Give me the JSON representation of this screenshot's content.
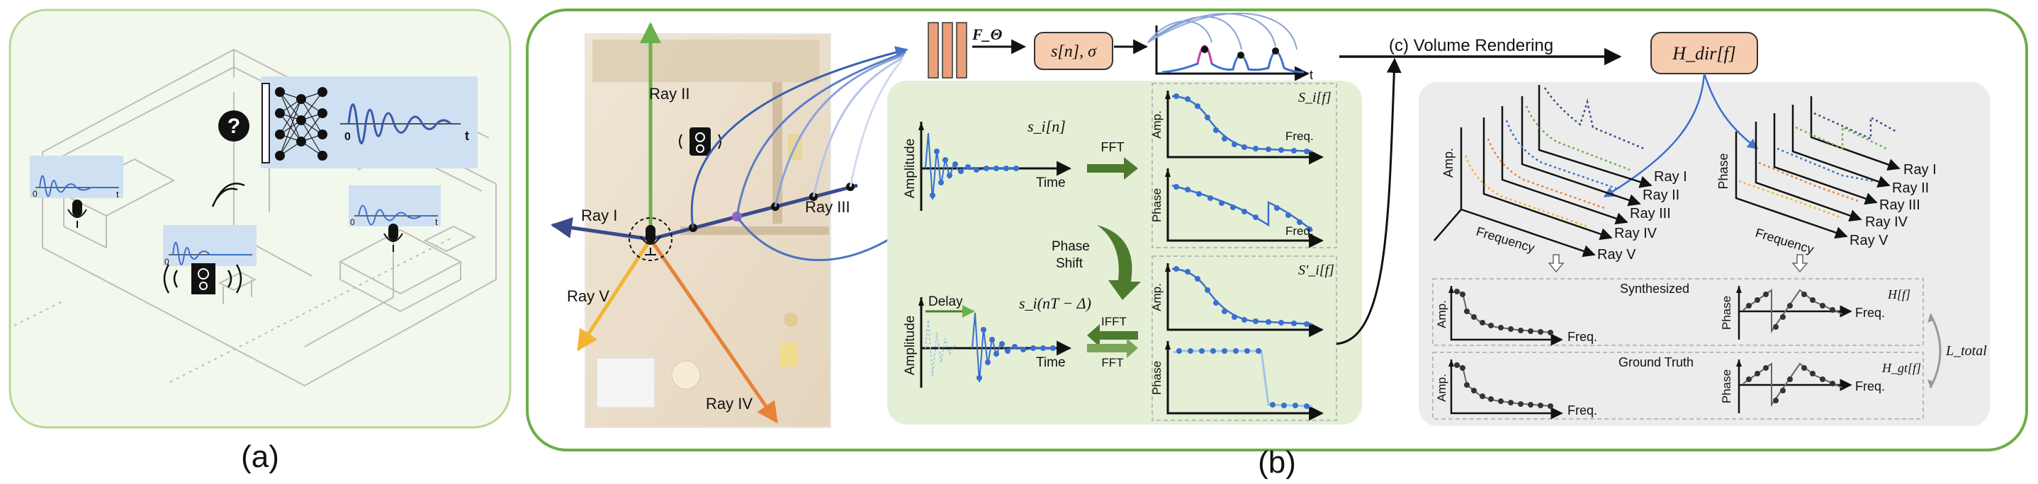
{
  "captions": {
    "a": "(a)",
    "b": "(b)"
  },
  "rays": {
    "ray1": "Ray I",
    "ray2": "Ray II",
    "ray3": "Ray III",
    "ray4": "Ray IV",
    "ray5": "Ray V"
  },
  "network": {
    "f_theta": "F_Θ",
    "output": "s[n], σ",
    "t_axis": "t"
  },
  "time_domain": {
    "amplitude": "Amplitude",
    "time": "Time",
    "signal": "s_i[n]",
    "delayed_signal": "s_i(nT − Δ)",
    "delay": "Delay"
  },
  "transforms": {
    "fft": "FFT",
    "ifft": "IFFT",
    "fft2": "FFT",
    "phase_shift_1": "Phase",
    "phase_shift_2": "Shift"
  },
  "freq_domain": {
    "amp": "Amp.",
    "phase": "Phase",
    "freq": "Freq.",
    "spectrum": "S_i[f]",
    "shifted_spectrum": "S'_i[f]"
  },
  "rendering": {
    "label": "(c) Volume Rendering",
    "h_dir": "H_dir[f]"
  },
  "right_panel": {
    "amp": "Amp.",
    "phase": "Phase",
    "frequency": "Frequency",
    "rays_left": [
      "Ray I",
      "Ray II",
      "Ray III",
      "Ray IV",
      "Ray V"
    ],
    "rays_right": [
      "Ray I",
      "Ray II",
      "Ray III",
      "Ray IV",
      "Ray V"
    ],
    "synthesized": "Synthesized",
    "h_f": "H[f]",
    "ground_truth": "Ground Truth",
    "h_gt": "H_gt[f]",
    "freq": "Freq.",
    "loss": "L_total"
  },
  "panel_a": {
    "question": "?",
    "zero": "0",
    "t": "t"
  },
  "colors": {
    "green_border": "#6cae46",
    "light_green_border": "#b6d79a",
    "panel_green_fill": "#e4efd6",
    "gray_panel": "#ececec",
    "orange_box": "#f6cdb0",
    "signal_blue": "#3a6fd0",
    "ray_green": "#6ab04c",
    "ray_orange": "#e8823a",
    "ray_yellow": "#f2b531",
    "ray_blue": "#3a5aa8",
    "ray_purple": "#5b4a8b"
  }
}
